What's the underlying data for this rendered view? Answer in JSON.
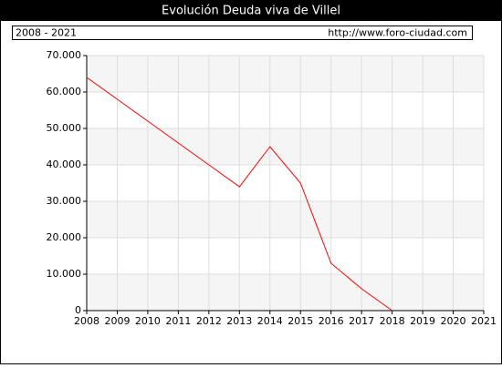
{
  "chart_data": {
    "type": "line",
    "title": "Evolución Deuda viva de Villel",
    "subtitle": "2008 - 2021",
    "source": "http://www.foro-ciudad.com",
    "x": [
      2008,
      2009,
      2010,
      2011,
      2012,
      2013,
      2014,
      2015,
      2016,
      2017,
      2018,
      2019,
      2020,
      2021
    ],
    "series": [
      {
        "name": "Deuda viva",
        "color": "#ff0000",
        "values": [
          64000,
          58000,
          52000,
          46000,
          40000,
          34000,
          45000,
          35000,
          13000,
          6000,
          0,
          null,
          null,
          null
        ]
      }
    ],
    "xlim": [
      2008,
      2021
    ],
    "xticks": [
      2008,
      2009,
      2010,
      2011,
      2012,
      2013,
      2014,
      2015,
      2016,
      2017,
      2018,
      2019,
      2020,
      2021
    ],
    "ylim": [
      0,
      70000
    ],
    "yticks": [
      0,
      {
        "value": 10000,
        "label": "10.000"
      },
      {
        "value": 20000,
        "label": "20.000"
      },
      {
        "value": 30000,
        "label": "30.000"
      },
      {
        "value": 40000,
        "label": "40.000"
      },
      {
        "value": 50000,
        "label": "50.000"
      },
      {
        "value": 60000,
        "label": "60.000"
      },
      {
        "value": 70000,
        "label": "70.000"
      }
    ],
    "grid": true
  }
}
